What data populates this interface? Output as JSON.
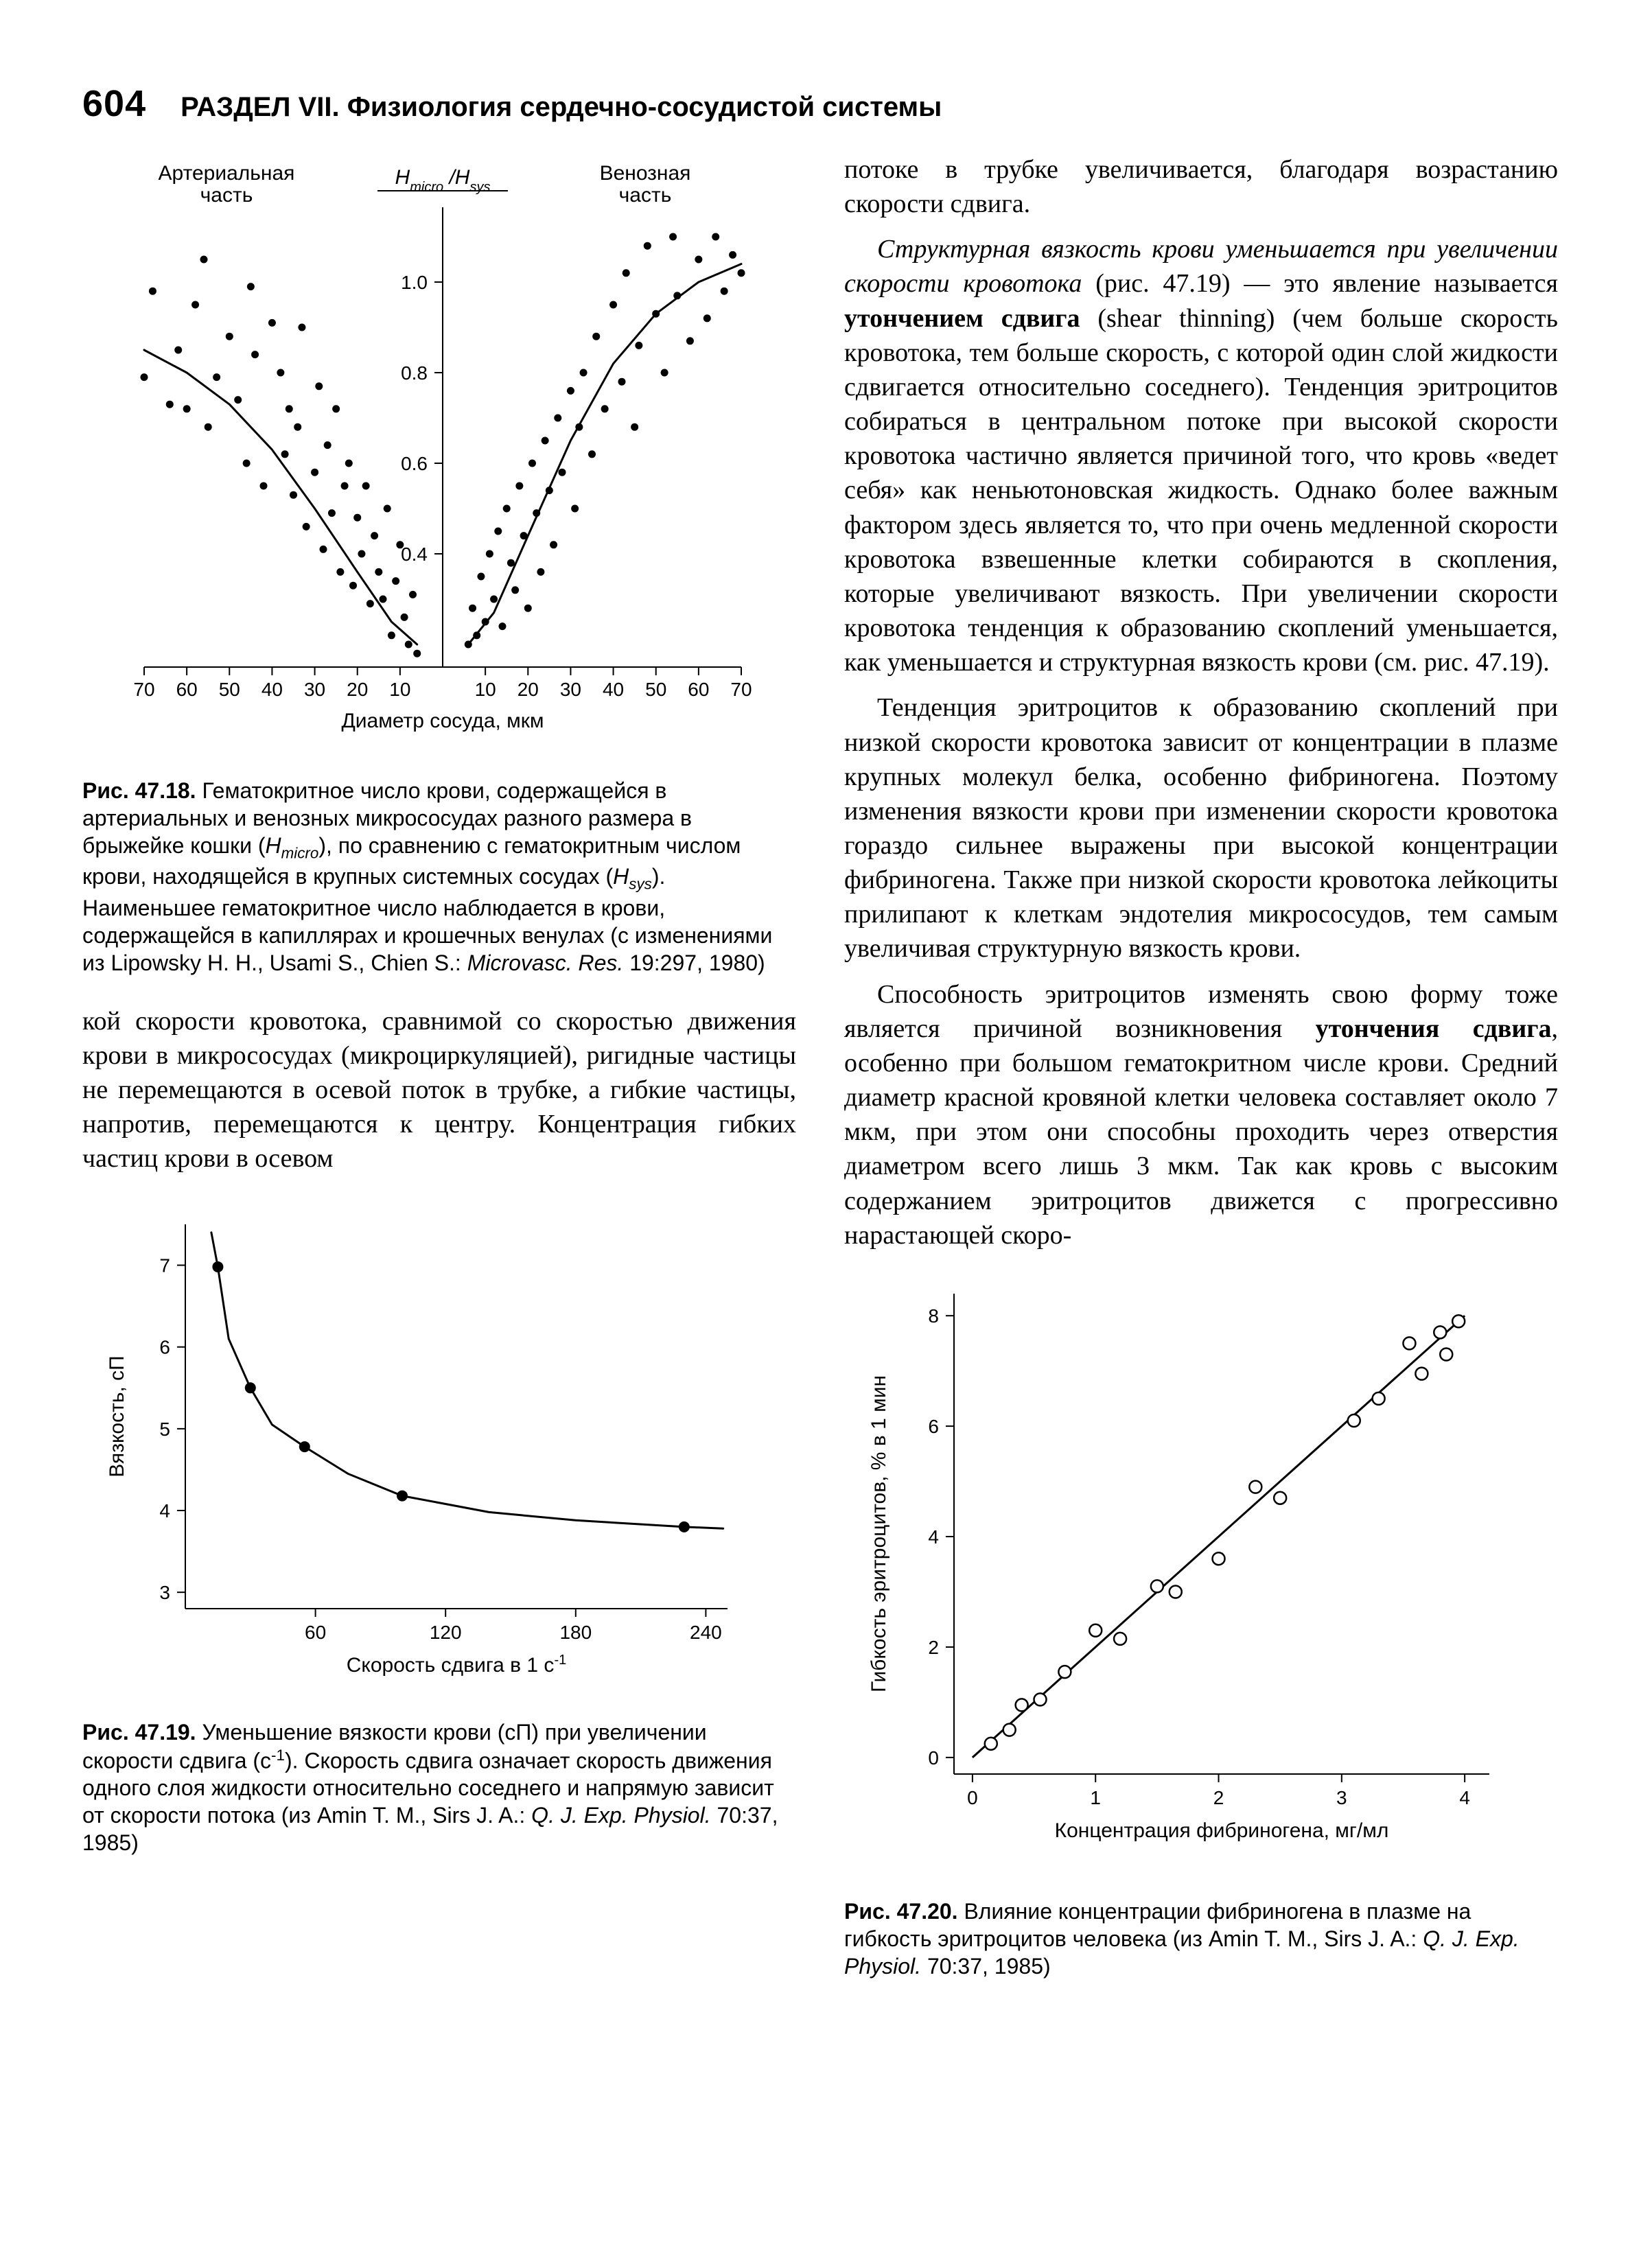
{
  "page_number": "604",
  "section_header": "РАЗДЕЛ VII. Физиология сердечно-сосудистой системы",
  "fig4718": {
    "type": "scatter",
    "top_left_label": "Артериальная\nчасть",
    "top_right_label": "Венозная\nчасть",
    "top_center_label_html": "H<sub>micro</sub> /H<sub>sys</sub>",
    "xlabel": "Диаметр сосуда, мкм",
    "x_ticks_left": [
      70,
      60,
      50,
      40,
      30,
      20,
      10
    ],
    "x_ticks_right": [
      10,
      20,
      30,
      40,
      50,
      60,
      70
    ],
    "y_ticks": [
      0.4,
      0.6,
      0.8,
      1.0
    ],
    "ylim": [
      0.15,
      1.15
    ],
    "grid": false,
    "background_color": "#ffffff",
    "axis_color": "#000000",
    "point_color": "#000000",
    "point_radius": 5.5,
    "curve_width": 3,
    "curve_color": "#000000",
    "left_points": [
      [
        70,
        0.79
      ],
      [
        68,
        0.98
      ],
      [
        64,
        0.73
      ],
      [
        62,
        0.85
      ],
      [
        60,
        0.72
      ],
      [
        58,
        0.95
      ],
      [
        56,
        1.05
      ],
      [
        55,
        0.68
      ],
      [
        53,
        0.79
      ],
      [
        50,
        0.88
      ],
      [
        48,
        0.74
      ],
      [
        46,
        0.6
      ],
      [
        45,
        0.99
      ],
      [
        44,
        0.84
      ],
      [
        42,
        0.55
      ],
      [
        40,
        0.91
      ],
      [
        38,
        0.8
      ],
      [
        37,
        0.62
      ],
      [
        36,
        0.72
      ],
      [
        35,
        0.53
      ],
      [
        34,
        0.68
      ],
      [
        33,
        0.9
      ],
      [
        32,
        0.46
      ],
      [
        30,
        0.58
      ],
      [
        29,
        0.77
      ],
      [
        28,
        0.41
      ],
      [
        27,
        0.64
      ],
      [
        26,
        0.49
      ],
      [
        25,
        0.72
      ],
      [
        24,
        0.36
      ],
      [
        23,
        0.55
      ],
      [
        22,
        0.6
      ],
      [
        21,
        0.33
      ],
      [
        20,
        0.48
      ],
      [
        19,
        0.4
      ],
      [
        18,
        0.55
      ],
      [
        17,
        0.29
      ],
      [
        16,
        0.44
      ],
      [
        15,
        0.36
      ],
      [
        14,
        0.3
      ],
      [
        13,
        0.5
      ],
      [
        12,
        0.22
      ],
      [
        11,
        0.34
      ],
      [
        10,
        0.42
      ],
      [
        9,
        0.26
      ],
      [
        8,
        0.2
      ],
      [
        7,
        0.31
      ],
      [
        6,
        0.18
      ]
    ],
    "right_points": [
      [
        6,
        0.2
      ],
      [
        7,
        0.28
      ],
      [
        8,
        0.22
      ],
      [
        9,
        0.35
      ],
      [
        10,
        0.25
      ],
      [
        11,
        0.4
      ],
      [
        12,
        0.3
      ],
      [
        13,
        0.45
      ],
      [
        14,
        0.24
      ],
      [
        15,
        0.5
      ],
      [
        16,
        0.38
      ],
      [
        17,
        0.32
      ],
      [
        18,
        0.55
      ],
      [
        19,
        0.44
      ],
      [
        20,
        0.28
      ],
      [
        21,
        0.6
      ],
      [
        22,
        0.49
      ],
      [
        23,
        0.36
      ],
      [
        24,
        0.65
      ],
      [
        25,
        0.54
      ],
      [
        26,
        0.42
      ],
      [
        27,
        0.7
      ],
      [
        28,
        0.58
      ],
      [
        30,
        0.76
      ],
      [
        31,
        0.5
      ],
      [
        32,
        0.68
      ],
      [
        33,
        0.8
      ],
      [
        35,
        0.62
      ],
      [
        36,
        0.88
      ],
      [
        38,
        0.72
      ],
      [
        40,
        0.95
      ],
      [
        42,
        0.78
      ],
      [
        43,
        1.02
      ],
      [
        45,
        0.68
      ],
      [
        46,
        0.86
      ],
      [
        48,
        1.08
      ],
      [
        50,
        0.93
      ],
      [
        52,
        0.8
      ],
      [
        54,
        1.1
      ],
      [
        55,
        0.97
      ],
      [
        58,
        0.87
      ],
      [
        60,
        1.05
      ],
      [
        62,
        0.92
      ],
      [
        64,
        1.1
      ],
      [
        66,
        0.98
      ],
      [
        68,
        1.06
      ],
      [
        70,
        1.02
      ]
    ],
    "curve_left": [
      [
        70,
        0.85
      ],
      [
        60,
        0.8
      ],
      [
        50,
        0.73
      ],
      [
        40,
        0.63
      ],
      [
        30,
        0.5
      ],
      [
        20,
        0.36
      ],
      [
        12,
        0.25
      ],
      [
        6,
        0.2
      ]
    ],
    "curve_right": [
      [
        6,
        0.2
      ],
      [
        12,
        0.27
      ],
      [
        20,
        0.44
      ],
      [
        30,
        0.65
      ],
      [
        40,
        0.82
      ],
      [
        50,
        0.93
      ],
      [
        60,
        1.0
      ],
      [
        70,
        1.04
      ]
    ]
  },
  "caption4718": {
    "prefix": "Рис. 47.18.",
    "text_parts": [
      " Гематокритное число крови, содержащейся в артериальных и венозных микрососудах разного размера в брыжейке кошки (",
      "), по сравнению с гематокритным числом крови, находящейся в крупных системных сосудах (",
      "). Наименьшее гематокритное число наблюдается в крови, содержащейся в капиллярах и крошечных венулах (с изменениями из Lipowsky H. H., Usami S., Chien S.: "
    ],
    "h_micro": "H",
    "h_micro_sub": "micro",
    "h_sys": "H",
    "h_sys_sub": "sys",
    "ital_source": "Microvasc. Res.",
    "source_tail": " 19:297, 1980)"
  },
  "para_left1": "кой скорости кровотока, сравнимой со скоростью движения крови в микрососудах (микроциркуляцией), ригидные частицы не перемещаются в осевой поток в трубке, а гибкие частицы, напротив, перемещаются к центру. Концентрация гибких частиц крови в осевом",
  "fig4719": {
    "type": "line",
    "xlabel": "Скорость сдвига в 1 с",
    "xlabel_sup": "-1",
    "ylabel": "Вязкость, сП",
    "x_ticks": [
      60,
      120,
      180,
      240
    ],
    "y_ticks": [
      3,
      4,
      5,
      6,
      7
    ],
    "xlim": [
      0,
      250
    ],
    "ylim": [
      2.8,
      7.5
    ],
    "background_color": "#ffffff",
    "axis_color": "#000000",
    "line_color": "#000000",
    "line_width": 3,
    "marker_color": "#000000",
    "marker_radius": 8,
    "points": [
      [
        15,
        6.98
      ],
      [
        30,
        5.5
      ],
      [
        55,
        4.78
      ],
      [
        100,
        4.18
      ],
      [
        230,
        3.8
      ]
    ],
    "curve": [
      [
        12,
        7.4
      ],
      [
        15,
        6.98
      ],
      [
        20,
        6.1
      ],
      [
        30,
        5.5
      ],
      [
        40,
        5.05
      ],
      [
        55,
        4.78
      ],
      [
        75,
        4.45
      ],
      [
        100,
        4.18
      ],
      [
        140,
        3.98
      ],
      [
        180,
        3.88
      ],
      [
        230,
        3.8
      ],
      [
        248,
        3.78
      ]
    ]
  },
  "caption4719": {
    "prefix": "Рис. 47.19.",
    "text1": " Уменьшение вязкости крови (сП) при увеличении скорости сдвига (с",
    "sup1": "-1",
    "text2": "). Скорость сдвига означает скорость движения одного слоя жидкости относительно соседнего и напрямую зависит от скорости потока (из Amin T. M., Sirs J. A.: ",
    "ital_source": "Q. J. Exp. Physiol.",
    "source_tail": " 70:37, 1985)"
  },
  "para_right1": "потоке в трубке увеличивается, благодаря возрастанию скорости сдвига.",
  "para_right2_lead_ital": "Структурная вязкость крови уменьшается при увеличении скорости кровотока",
  "para_right2_mid1": " (рис. 47.19) — это явление называется ",
  "para_right2_bold": "утончением сдвига",
  "para_right2_mid2": " (shear thinning) (чем больше скорость кровотока, тем больше скорость, с которой один слой жидкости сдвигается относительно соседнего). Тенденция эритроцитов собираться в центральном потоке при высокой скорости кровотока частично является причиной того, что кровь «ведет себя» как неньютоновская жидкость. Однако более важным фактором здесь является то, что при очень медленной скорости кровотока взвешенные клетки собираются в скопления, которые увеличивают вязкость. При увеличении скорости кровотока тенденция к образованию скоплений уменьшается, как уменьшается и структурная вязкость крови (см. рис. 47.19).",
  "para_right3": "Тенденция эритроцитов к образованию скоплений при низкой скорости кровотока зависит от концентрации в плазме крупных молекул белка, особенно фибриногена. Поэтому изменения вязкости крови при изменении скорости кровотока гораздо сильнее выражены при высокой концентрации фибриногена. Также при низкой скорости кровотока лейкоциты прилипают к клеткам эндотелия микрососудов, тем самым увеличивая структурную вязкость крови.",
  "para_right4_a": "Способность эритроцитов изменять свою форму тоже является причиной возникновения ",
  "para_right4_bold": "утончения сдвига",
  "para_right4_b": ", особенно при большом гематокритном числе крови. Средний диаметр красной кровяной клетки человека составляет около 7 мкм, при этом они способны проходить через отверстия диаметром всего лишь 3 мкм. Так как кровь с высоким содержанием эритроцитов движется с прогрессивно нарастающей скоро-",
  "fig4720": {
    "type": "scatter",
    "xlabel": "Концентрация фибриногена, мг/мл",
    "ylabel": "Гибкость эритроцитов, % в 1 мин",
    "x_ticks": [
      0,
      1,
      2,
      3,
      4
    ],
    "y_ticks": [
      0,
      2,
      4,
      6,
      8
    ],
    "xlim": [
      -0.15,
      4.2
    ],
    "ylim": [
      -0.3,
      8.4
    ],
    "background_color": "#ffffff",
    "axis_color": "#000000",
    "line_color": "#000000",
    "line_width": 3,
    "marker_edge": "#000000",
    "marker_fill": "#ffffff",
    "marker_radius": 9,
    "marker_stroke": 2.5,
    "points": [
      [
        0.15,
        0.25
      ],
      [
        0.3,
        0.5
      ],
      [
        0.4,
        0.95
      ],
      [
        0.55,
        1.05
      ],
      [
        0.75,
        1.55
      ],
      [
        1.0,
        2.3
      ],
      [
        1.2,
        2.15
      ],
      [
        1.5,
        3.1
      ],
      [
        1.65,
        3.0
      ],
      [
        2.0,
        3.6
      ],
      [
        2.3,
        4.9
      ],
      [
        2.5,
        4.7
      ],
      [
        3.1,
        6.1
      ],
      [
        3.3,
        6.5
      ],
      [
        3.55,
        7.5
      ],
      [
        3.65,
        6.95
      ],
      [
        3.8,
        7.7
      ],
      [
        3.85,
        7.3
      ],
      [
        3.95,
        7.9
      ]
    ],
    "fit_line": [
      [
        0.0,
        0.0
      ],
      [
        4.0,
        8.0
      ]
    ]
  },
  "caption4720": {
    "prefix": "Рис. 47.20.",
    "text1": " Влияние концентрации фибриногена в плазме на гибкость эритроцитов человека (из Amin T. M., Sirs J. A.: ",
    "ital_source": "Q. J. Exp. Physiol.",
    "source_tail": " 70:37, 1985)"
  }
}
